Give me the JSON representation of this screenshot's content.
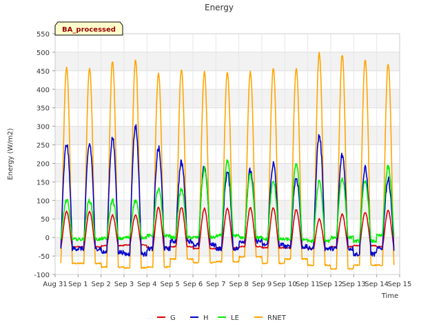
{
  "chart_data": {
    "type": "line",
    "title": "Energy",
    "xlabel": "Time",
    "ylabel": "Energy (W/m2)",
    "badge": "BA_processed",
    "xlim": [
      0,
      15
    ],
    "ylim": [
      -100,
      550
    ],
    "x_tick_values": [
      0,
      1,
      2,
      3,
      4,
      5,
      6,
      7,
      8,
      9,
      10,
      11,
      12,
      13,
      14,
      15
    ],
    "x_tick_labels": [
      "Aug 31",
      "Sep 1",
      "Sep 2",
      "Sep 3",
      "Sep 4",
      "Sep 5",
      "Sep 6",
      "Sep 7",
      "Sep 8",
      "Sep 9",
      "Sep 10",
      "Sep 11",
      "Sep 12",
      "Sep 13",
      "Sep 14",
      "Sep 15"
    ],
    "y_ticks": [
      -100,
      -50,
      0,
      50,
      100,
      150,
      200,
      250,
      300,
      350,
      400,
      450,
      500,
      550
    ],
    "grid": true,
    "legend_position": "bottom",
    "x_start": 0.25,
    "x_end": 14.75,
    "series": [
      {
        "name": "G",
        "color": "#dd0000",
        "daily_peak": [
          70,
          60,
          60,
          80,
          82,
          78,
          78,
          80,
          80,
          75,
          50,
          62,
          68,
          72
        ],
        "night_value": [
          -25,
          -22,
          -20,
          -28,
          -25,
          -30,
          -28,
          -25,
          -28,
          -28,
          -30,
          -25,
          -22,
          -25
        ]
      },
      {
        "name": "H",
        "color": "#0000cc",
        "daily_peak": [
          252,
          268,
          300,
          240,
          202,
          190,
          175,
          180,
          198,
          160,
          275,
          222,
          185,
          155
        ],
        "night_value": [
          -30,
          -40,
          -45,
          -30,
          -10,
          -20,
          -30,
          -10,
          -20,
          -25,
          -30,
          -30,
          -45,
          -30
        ]
      },
      {
        "name": "LE",
        "color": "#00ee00",
        "daily_peak": [
          100,
          100,
          100,
          130,
          130,
          185,
          205,
          170,
          150,
          200,
          150,
          160,
          150,
          190
        ],
        "night_value": [
          -5,
          -3,
          0,
          5,
          0,
          0,
          5,
          0,
          -5,
          -5,
          -10,
          0,
          -10,
          5
        ]
      },
      {
        "name": "RNET",
        "color": "#ffa500",
        "daily_peak": [
          458,
          475,
          480,
          443,
          453,
          446,
          446,
          447,
          457,
          457,
          498,
          493,
          481,
          469
        ],
        "night_value": [
          -70,
          -80,
          -82,
          -80,
          -58,
          -68,
          -65,
          -52,
          -70,
          -58,
          -75,
          -85,
          -75,
          -75
        ]
      }
    ]
  }
}
